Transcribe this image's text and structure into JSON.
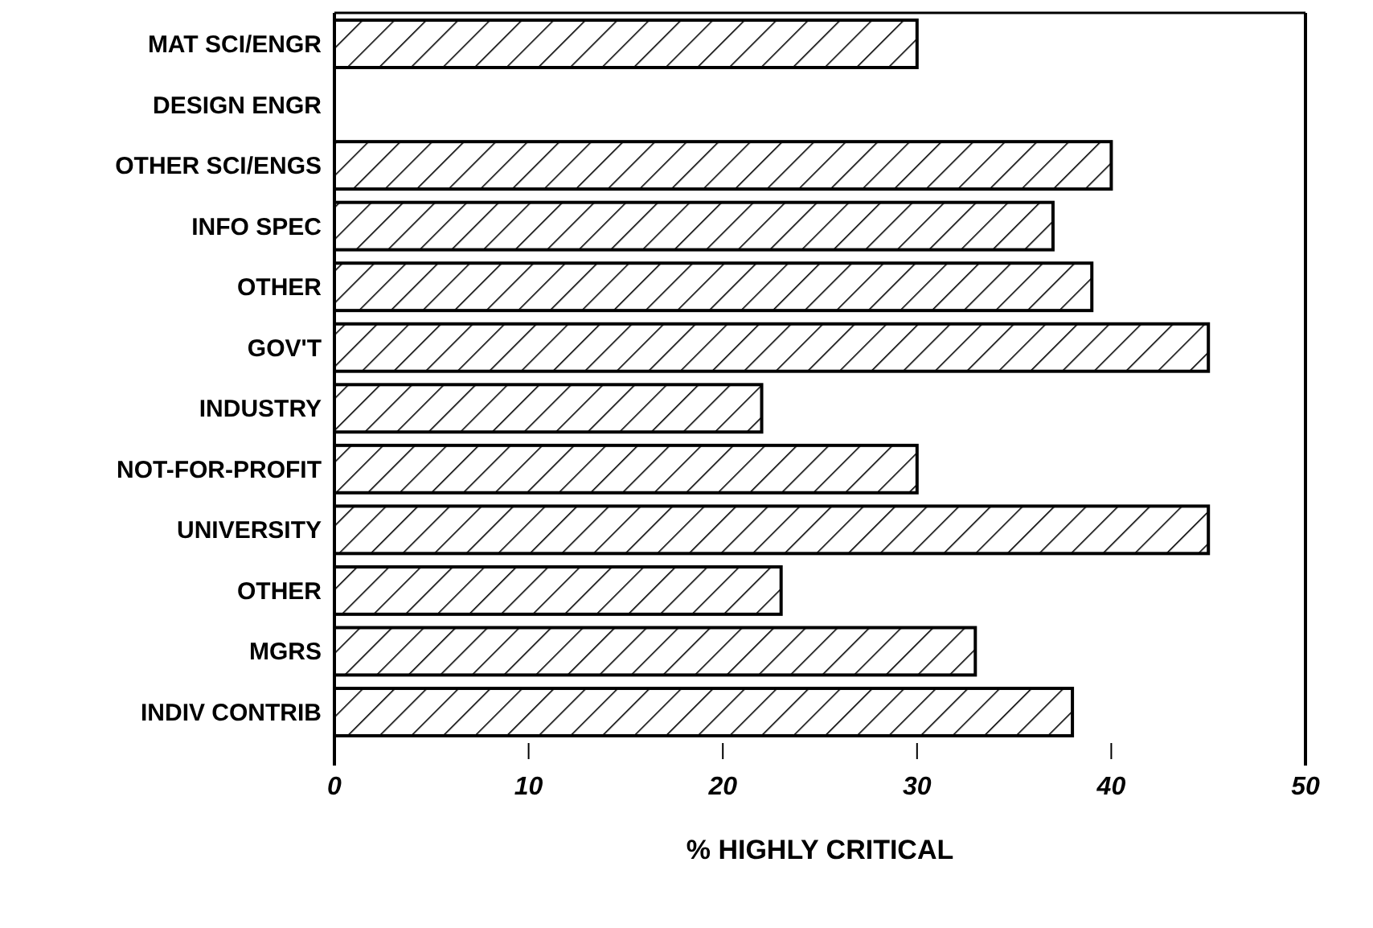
{
  "chart_data": {
    "type": "bar",
    "orientation": "horizontal",
    "xlabel": "% HIGHLY CRITICAL",
    "categories": [
      "MAT SCI/ENGR",
      "DESIGN ENGR",
      "OTHER SCI/ENGS",
      "INFO SPEC",
      "OTHER",
      "GOV'T",
      "INDUSTRY",
      "NOT-FOR-PROFIT",
      "UNIVERSITY",
      "OTHER",
      "MGRS",
      "INDIV CONTRIB"
    ],
    "values": [
      30,
      null,
      40,
      37,
      39,
      45,
      22,
      30,
      45,
      23,
      33,
      38
    ],
    "color": "#000000",
    "xlim": [
      0,
      50
    ],
    "xticks": [
      0,
      10,
      20,
      30,
      40,
      50
    ],
    "grid": false
  }
}
